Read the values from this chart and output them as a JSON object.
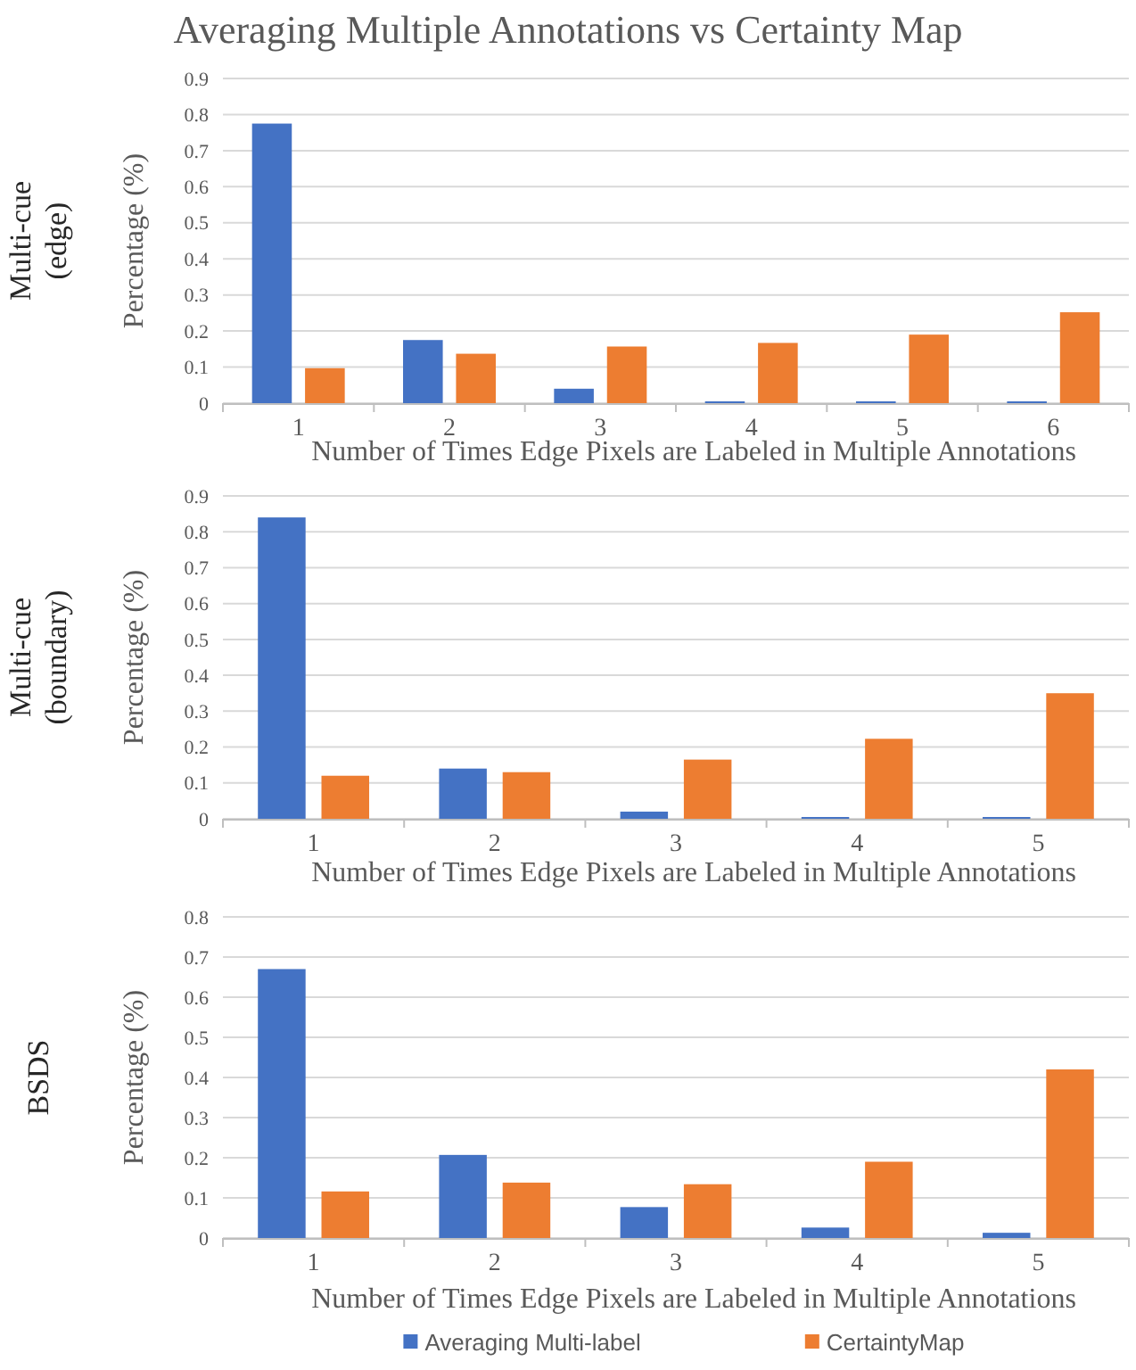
{
  "chart_data": [
    {
      "type": "bar",
      "title": "Averaging Multiple Annotations vs Certainty Map",
      "annotations": [
        "Multi-cue (edge)"
      ],
      "xlabel": "Number of Times Edge Pixels are Labeled in Multiple Annotations",
      "ylabel": "Percentage (%)",
      "categories": [
        "1",
        "2",
        "3",
        "4",
        "5",
        "6"
      ],
      "series": [
        {
          "color": "#4472c4",
          "values": [
            0.775,
            0.175,
            0.04,
            0.005,
            0.005,
            0.005
          ]
        },
        {
          "color": "#ed7d31",
          "values": [
            0.097,
            0.137,
            0.157,
            0.167,
            0.19,
            0.252
          ]
        }
      ],
      "ylim": [
        0,
        0.9
      ],
      "yticks": [
        0,
        0.1,
        0.2,
        0.3,
        0.4,
        0.5,
        0.6,
        0.7,
        0.8,
        0.9
      ],
      "grid": "y",
      "legend": false
    },
    {
      "type": "bar",
      "annotations": [
        "Multi-cue (boundary)"
      ],
      "xlabel": "Number of Times Edge Pixels are Labeled in Multiple Annotations",
      "ylabel": "Percentage (%)",
      "categories": [
        "1",
        "2",
        "3",
        "4",
        "5"
      ],
      "series": [
        {
          "color": "#4472c4",
          "values": [
            0.84,
            0.14,
            0.02,
            0.005,
            0.005
          ]
        },
        {
          "color": "#ed7d31",
          "values": [
            0.12,
            0.13,
            0.165,
            0.223,
            0.35
          ]
        }
      ],
      "ylim": [
        0,
        0.9
      ],
      "yticks": [
        0,
        0.1,
        0.2,
        0.3,
        0.4,
        0.5,
        0.6,
        0.7,
        0.8,
        0.9
      ],
      "grid": "y",
      "legend": false
    },
    {
      "type": "bar",
      "annotations": [
        "BSDS"
      ],
      "xlabel": "Number of Times Edge Pixels are Labeled in Multiple Annotations",
      "ylabel": "Percentage (%)",
      "categories": [
        "1",
        "2",
        "3",
        "4",
        "5"
      ],
      "series": [
        {
          "name": "Averaging Multi-label",
          "color": "#4472c4",
          "values": [
            0.67,
            0.207,
            0.077,
            0.026,
            0.013
          ]
        },
        {
          "name": "CertaintyMap",
          "color": "#ed7d31",
          "values": [
            0.116,
            0.138,
            0.134,
            0.19,
            0.42
          ]
        }
      ],
      "ylim": [
        0,
        0.8
      ],
      "yticks": [
        0,
        0.1,
        0.2,
        0.3,
        0.4,
        0.5,
        0.6,
        0.7,
        0.8
      ],
      "grid": "y",
      "legend": "bottom"
    }
  ]
}
